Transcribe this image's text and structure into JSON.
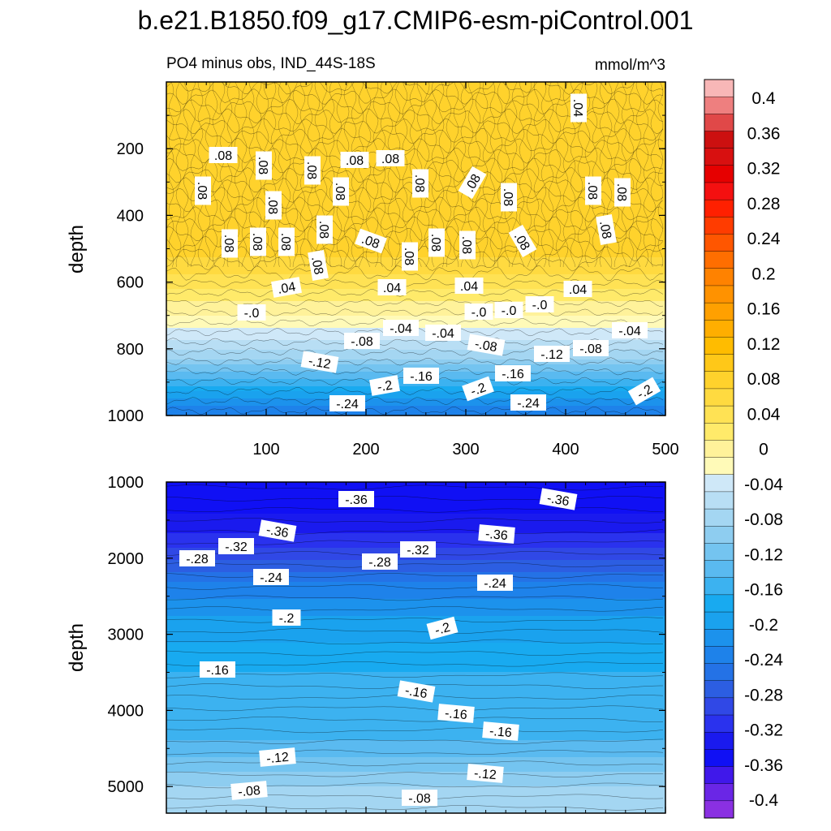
{
  "chart_data": {
    "type": "contour",
    "title": "b.e21.B1850.f09_g17.CMIP6-esm-piControl.001",
    "subtitle_left": "PO4 minus obs, IND_44S-18S",
    "units": "mmol/m^3",
    "xlabel": "",
    "ylabel": "depth",
    "xlim": [
      0,
      500
    ],
    "x_ticks": [
      "100",
      "200",
      "300",
      "400",
      "500"
    ],
    "panels": [
      {
        "name": "upper",
        "ylim": [
          0,
          1000
        ],
        "y_ticks": [
          "200",
          "400",
          "600",
          "800",
          "1000"
        ],
        "depth_profile": [
          {
            "depth": 100,
            "value": 0.08
          },
          {
            "depth": 300,
            "value": 0.08
          },
          {
            "depth": 500,
            "value": 0.08
          },
          {
            "depth": 600,
            "value": 0.04
          },
          {
            "depth": 680,
            "value": 0.0
          },
          {
            "depth": 760,
            "value": -0.04
          },
          {
            "depth": 820,
            "value": -0.08
          },
          {
            "depth": 860,
            "value": -0.12
          },
          {
            "depth": 900,
            "value": -0.16
          },
          {
            "depth": 940,
            "value": -0.2
          },
          {
            "depth": 980,
            "value": -0.24
          }
        ],
        "contour_labels": [
          ".04",
          ".08",
          ".08",
          ".08",
          ".08",
          ".08",
          ".08",
          ".08",
          ".08",
          ".08",
          ".08",
          ".08",
          ".08",
          ".08",
          ".08",
          ".08",
          ".08",
          ".08",
          ".08",
          ".08",
          ".08",
          ".08",
          ".08",
          ".08",
          ".08",
          ".04",
          ".04",
          ".04",
          ".04",
          "-.0",
          "-.0",
          "-.0",
          "-.0",
          "-.04",
          "-.04",
          "-.04",
          "-.08",
          "-.08",
          "-.08",
          "-.12",
          "-.12",
          "-.16",
          "-.16",
          "-.2",
          "-.2",
          "-.2",
          "-.24",
          "-.24"
        ]
      },
      {
        "name": "lower",
        "ylim": [
          1000,
          5350
        ],
        "y_ticks": [
          "1000",
          "2000",
          "3000",
          "4000",
          "5000"
        ],
        "depth_profile": [
          {
            "depth": 1300,
            "value": -0.36
          },
          {
            "depth": 1800,
            "value": -0.32
          },
          {
            "depth": 2100,
            "value": -0.28
          },
          {
            "depth": 2400,
            "value": -0.24
          },
          {
            "depth": 2900,
            "value": -0.2
          },
          {
            "depth": 3700,
            "value": -0.16
          },
          {
            "depth": 4300,
            "value": -0.16
          },
          {
            "depth": 4700,
            "value": -0.12
          },
          {
            "depth": 5100,
            "value": -0.08
          }
        ],
        "contour_labels": [
          "-.36",
          "-.36",
          "-.36",
          "-.36",
          "-.32",
          "-.32",
          "-.28",
          "-.28",
          "-.24",
          "-.24",
          "-.2",
          "-.2",
          "-.16",
          "-.16",
          "-.16",
          "-.16",
          "-.12",
          "-.12",
          "-.08",
          "-.08"
        ]
      }
    ],
    "colorbar": {
      "labels": [
        "0.4",
        "0.36",
        "0.32",
        "0.28",
        "0.24",
        "0.2",
        "0.16",
        "0.12",
        "0.08",
        "0.04",
        "0",
        "-0.04",
        "-0.08",
        "-0.12",
        "-0.16",
        "-0.2",
        "-0.24",
        "-0.28",
        "-0.32",
        "-0.36",
        "-0.4"
      ],
      "colors_top_to_bottom": [
        "#f8b7b7",
        "#ee7f7f",
        "#e04848",
        "#cc1010",
        "#d81010",
        "#e60000",
        "#f41010",
        "#ff2000",
        "#ff3c00",
        "#ff5600",
        "#ff6e00",
        "#ff8200",
        "#ff9200",
        "#ffa000",
        "#ffae00",
        "#ffbc00",
        "#ffc818",
        "#ffd22c",
        "#ffda40",
        "#ffe254",
        "#ffea6a",
        "#fff29a",
        "#fffab8",
        "#cfe8f8",
        "#b8def4",
        "#a4d6f2",
        "#8ecdf0",
        "#74c4f0",
        "#5abaf0",
        "#3cb2f0",
        "#18aaf0",
        "#1aa2ee",
        "#1c92ec",
        "#1e82ea",
        "#2472e6",
        "#2c5ee2",
        "#3048e6",
        "#2a32ee",
        "#1a1aee",
        "#1010f4",
        "#4018ea",
        "#6a26e6",
        "#8a30e2"
      ]
    }
  }
}
